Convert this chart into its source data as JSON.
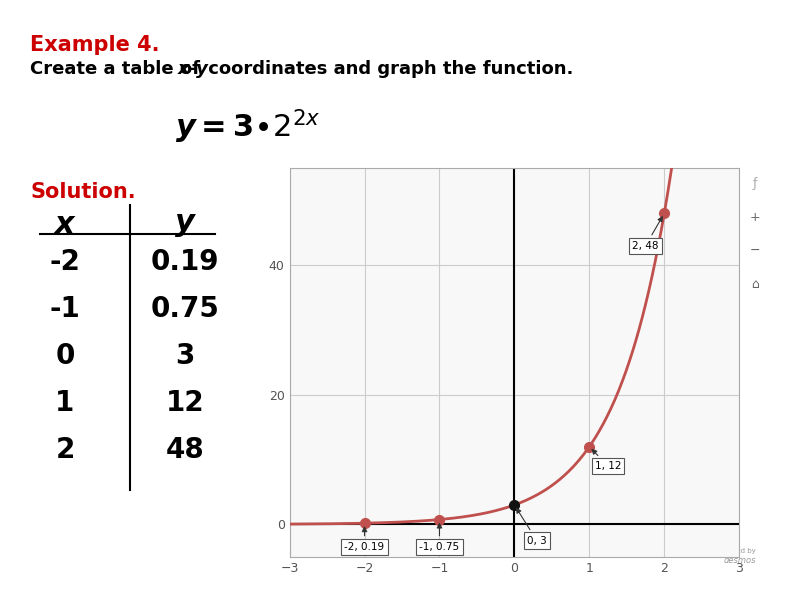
{
  "title_example": "Example 4.",
  "title_desc1": "Create a table of ",
  "title_desc_italic": "x-y",
  "title_desc2": " coordinates and graph the function.",
  "solution_label": "Solution.",
  "table_x_vals": [
    -2,
    -1,
    0,
    1,
    2
  ],
  "table_y_vals": [
    "0.19",
    "0.75",
    "3",
    "12",
    "48"
  ],
  "points": [
    [
      -2,
      0.1875
    ],
    [
      -1,
      0.75
    ],
    [
      0,
      3
    ],
    [
      1,
      12
    ],
    [
      2,
      48
    ]
  ],
  "point_labels": [
    "-2, 0.19",
    "-1, 0.75",
    "0, 3",
    "1, 12",
    "2, 48"
  ],
  "curve_color": "#c0504d",
  "bg_color": "#ffffff",
  "graph_bg": "#f8f8f8",
  "grid_color": "#cccccc",
  "axis_color": "#000000",
  "xlim": [
    -3,
    3
  ],
  "ylim": [
    -5,
    55
  ],
  "yticks": [
    0,
    20,
    40
  ],
  "xticks": [
    -3,
    -2,
    -1,
    0,
    1,
    2,
    3
  ],
  "example_color": "#cc0000",
  "solution_color": "#cc0000",
  "text_color": "#000000",
  "label_positions": [
    [
      -2,
      -3.5,
      "-2, 0.19"
    ],
    [
      -1,
      -3.5,
      "-1, 0.75"
    ],
    [
      0.3,
      -2.5,
      "0, 3"
    ],
    [
      1.25,
      9.0,
      "1, 12"
    ],
    [
      1.75,
      43.0,
      "2, 48"
    ]
  ],
  "label_points": [
    [
      -2,
      0.1875
    ],
    [
      -1,
      0.75
    ],
    [
      0,
      3
    ],
    [
      1,
      12
    ],
    [
      2,
      48
    ]
  ]
}
